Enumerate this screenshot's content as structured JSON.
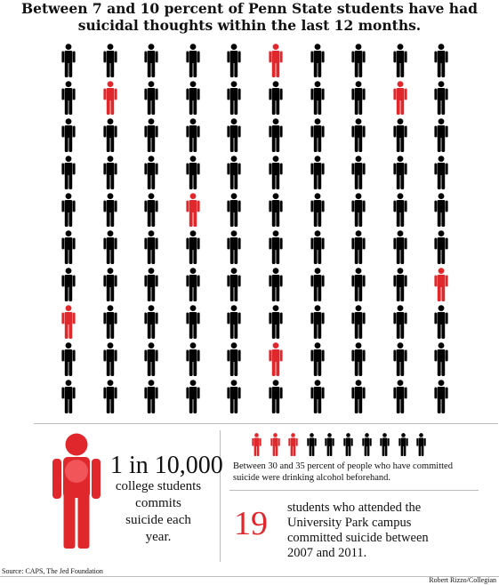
{
  "title": {
    "line1": "Between 7 and 10 percent of Penn State students have had",
    "line2": "suicidal thoughts within the last 12 months."
  },
  "pictogram": {
    "rows": 10,
    "columns": 10,
    "highlighted": [
      [
        0,
        5
      ],
      [
        1,
        1
      ],
      [
        1,
        8
      ],
      [
        4,
        3
      ],
      [
        6,
        9
      ],
      [
        7,
        0
      ],
      [
        8,
        5
      ]
    ],
    "colors": {
      "normal": "#000000",
      "highlight": "#e0282c"
    }
  },
  "big_stat": {
    "number": "1 in 10,000",
    "line1": "college students",
    "line2": "commits",
    "line3": "suicide each",
    "line4": "year.",
    "figure_color": "#e0282c"
  },
  "alcohol_stat": {
    "figures_total": 10,
    "figures_red": 3,
    "line1": "Between 30 and 35 percent of people who have committed",
    "line2": "suicide were drinking alcohol beforehand."
  },
  "campus_stat": {
    "number": "19",
    "line1": "students who attended the",
    "line2": "University Park campus",
    "line3": "committed suicide between",
    "line4": "2007 and 2011."
  },
  "source": "Source: CAPS, The Jed Foundation",
  "credit": "Robert Rizzo/Collegian"
}
